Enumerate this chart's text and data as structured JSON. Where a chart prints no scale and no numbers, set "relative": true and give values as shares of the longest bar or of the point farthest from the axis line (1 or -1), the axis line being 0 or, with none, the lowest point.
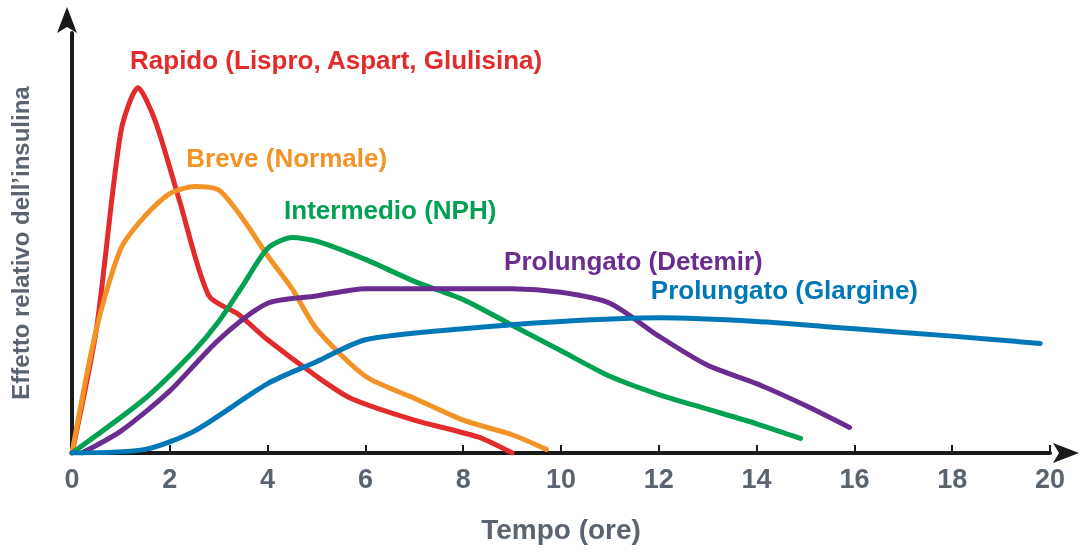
{
  "chart_data": {
    "type": "line",
    "relative": true,
    "xlabel": "Tempo (ore)",
    "ylabel": "Effetto relativo dell’insulina",
    "xlim": [
      0,
      20
    ],
    "xticks": [
      0,
      2,
      4,
      6,
      8,
      10,
      12,
      14,
      16,
      18,
      20
    ],
    "grid": false,
    "legend": false,
    "marker": "none",
    "line_style": "solid",
    "series": [
      {
        "name": "Rapido (Lispro, Aspart, Glulisina)",
        "color": "#e32b2b",
        "x": [
          0,
          0.5,
          1,
          1.35,
          1.7,
          2.2,
          2.8,
          3.4,
          4,
          5,
          5.7,
          7,
          8.3,
          9
        ],
        "values": [
          0,
          0.34,
          0.88,
          1,
          0.91,
          0.69,
          0.43,
          0.38,
          0.31,
          0.21,
          0.15,
          0.09,
          0.044,
          0
        ]
      },
      {
        "name": "Breve (Normale)",
        "color": "#f39325",
        "x": [
          0,
          0.5,
          1,
          1.5,
          2,
          2.5,
          3,
          3.5,
          4,
          4.5,
          5,
          6,
          7,
          8,
          9,
          9.7
        ],
        "values": [
          0,
          0.34,
          0.56,
          0.65,
          0.71,
          0.73,
          0.72,
          0.64,
          0.54,
          0.45,
          0.34,
          0.21,
          0.15,
          0.09,
          0.05,
          0.01
        ]
      },
      {
        "name": "Intermedio (NPH)",
        "color": "#00a151",
        "x": [
          0,
          1.5,
          2.5,
          3,
          3.5,
          4,
          4.5,
          5,
          6,
          7,
          8,
          9,
          10,
          11,
          12,
          13,
          14,
          14.9
        ],
        "values": [
          0,
          0.15,
          0.28,
          0.36,
          0.46,
          0.56,
          0.59,
          0.58,
          0.53,
          0.47,
          0.42,
          0.35,
          0.28,
          0.21,
          0.16,
          0.12,
          0.08,
          0.04
        ]
      },
      {
        "name": "Prolungato (Detemir)",
        "color": "#6a2d8f",
        "x": [
          0.2,
          1,
          2,
          3,
          4,
          5,
          6,
          7,
          9,
          10,
          11,
          12,
          13,
          14,
          15,
          15.9
        ],
        "values": [
          0,
          0.06,
          0.17,
          0.31,
          0.41,
          0.43,
          0.45,
          0.45,
          0.45,
          0.44,
          0.41,
          0.32,
          0.24,
          0.19,
          0.13,
          0.07
        ]
      },
      {
        "name": "Prolungato (Glargine)",
        "color": "#0078b8",
        "x": [
          0,
          1.5,
          2.5,
          4,
          5,
          6,
          8,
          10,
          12,
          14,
          16,
          18,
          19.8
        ],
        "values": [
          0,
          0.01,
          0.06,
          0.19,
          0.25,
          0.31,
          0.34,
          0.36,
          0.37,
          0.36,
          0.34,
          0.32,
          0.3
        ]
      }
    ]
  }
}
